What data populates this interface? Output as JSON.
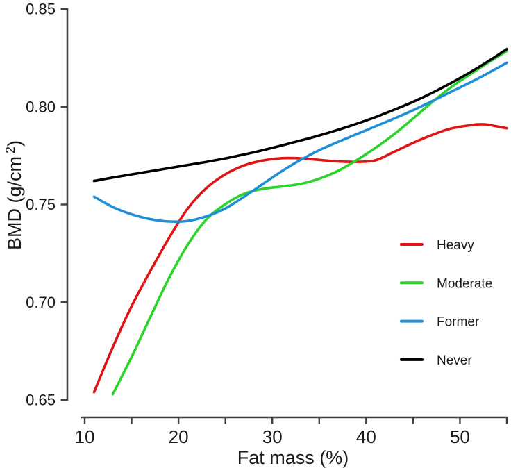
{
  "figure": {
    "background": "#ffffff",
    "axis_color": "#3f3f3f",
    "text_color": "#1a1a1a"
  },
  "chart_data": {
    "type": "line",
    "title": "",
    "xlabel": "Fat mass (%)",
    "ylabel_base": "BMD (g/cm",
    "ylabel_sup": "2",
    "ylabel_close": ")",
    "xlim": [
      10,
      55
    ],
    "ylim": [
      0.65,
      0.85
    ],
    "grid": false,
    "x_major_ticks": [
      10,
      20,
      30,
      40,
      50
    ],
    "x_major_tick_labels": [
      "10",
      "20",
      "30",
      "40",
      "50"
    ],
    "x_minor_ticks": [
      15,
      25,
      35,
      45,
      55
    ],
    "y_ticks": [
      0.85,
      0.8,
      0.75,
      0.7,
      0.65
    ],
    "y_tick_labels": [
      "0.85",
      "0.80",
      "0.75",
      "0.70",
      "0.65"
    ],
    "legend_position": "right-center",
    "legend_order": [
      "Heavy",
      "Moderate",
      "Former",
      "Never"
    ],
    "series": [
      {
        "name": "Heavy",
        "color": "#e01414",
        "points": [
          [
            11,
            0.654
          ],
          [
            13,
            0.677
          ],
          [
            15,
            0.698
          ],
          [
            17,
            0.716
          ],
          [
            19,
            0.733
          ],
          [
            21,
            0.748
          ],
          [
            23,
            0.7585
          ],
          [
            25,
            0.7655
          ],
          [
            27,
            0.77
          ],
          [
            29,
            0.7725
          ],
          [
            31,
            0.7737
          ],
          [
            33,
            0.7736
          ],
          [
            35,
            0.7728
          ],
          [
            37,
            0.772
          ],
          [
            39,
            0.7718
          ],
          [
            41,
            0.7726
          ],
          [
            43,
            0.777
          ],
          [
            45,
            0.7815
          ],
          [
            47,
            0.7855
          ],
          [
            49,
            0.7888
          ],
          [
            51,
            0.7905
          ],
          [
            52,
            0.791
          ],
          [
            53,
            0.7908
          ],
          [
            55,
            0.789
          ]
        ]
      },
      {
        "name": "Moderate",
        "color": "#2bd42b",
        "points": [
          [
            13,
            0.653
          ],
          [
            15,
            0.672
          ],
          [
            17,
            0.6925
          ],
          [
            19,
            0.7125
          ],
          [
            21,
            0.7295
          ],
          [
            23,
            0.7425
          ],
          [
            25,
            0.7502
          ],
          [
            27,
            0.7555
          ],
          [
            29,
            0.758
          ],
          [
            31,
            0.7592
          ],
          [
            33,
            0.7605
          ],
          [
            35,
            0.7632
          ],
          [
            37,
            0.7672
          ],
          [
            39,
            0.7727
          ],
          [
            41,
            0.779
          ],
          [
            43,
            0.786
          ],
          [
            45,
            0.794
          ],
          [
            47,
            0.8022
          ],
          [
            49,
            0.8098
          ],
          [
            51,
            0.8163
          ],
          [
            53,
            0.8225
          ],
          [
            55,
            0.8285
          ]
        ]
      },
      {
        "name": "Former",
        "color": "#1f8fd8",
        "points": [
          [
            11,
            0.754
          ],
          [
            13,
            0.7487
          ],
          [
            15,
            0.745
          ],
          [
            17,
            0.7425
          ],
          [
            19,
            0.7413
          ],
          [
            21,
            0.7416
          ],
          [
            23,
            0.744
          ],
          [
            25,
            0.748
          ],
          [
            27,
            0.754
          ],
          [
            29,
            0.7605
          ],
          [
            31,
            0.767
          ],
          [
            33,
            0.7728
          ],
          [
            35,
            0.7778
          ],
          [
            37,
            0.782
          ],
          [
            39,
            0.786
          ],
          [
            41,
            0.79
          ],
          [
            43,
            0.794
          ],
          [
            45,
            0.7982
          ],
          [
            47,
            0.8028
          ],
          [
            49,
            0.8075
          ],
          [
            51,
            0.8122
          ],
          [
            53,
            0.8172
          ],
          [
            55,
            0.8225
          ]
        ]
      },
      {
        "name": "Never",
        "color": "#000000",
        "points": [
          [
            11,
            0.762
          ],
          [
            13,
            0.7638
          ],
          [
            15,
            0.7654
          ],
          [
            17,
            0.767
          ],
          [
            19,
            0.7686
          ],
          [
            21,
            0.7702
          ],
          [
            23,
            0.7718
          ],
          [
            25,
            0.7736
          ],
          [
            27,
            0.7756
          ],
          [
            29,
            0.7778
          ],
          [
            31,
            0.7802
          ],
          [
            33,
            0.7827
          ],
          [
            35,
            0.7853
          ],
          [
            37,
            0.7882
          ],
          [
            39,
            0.7913
          ],
          [
            41,
            0.7947
          ],
          [
            43,
            0.7985
          ],
          [
            45,
            0.8025
          ],
          [
            47,
            0.807
          ],
          [
            49,
            0.812
          ],
          [
            51,
            0.8174
          ],
          [
            53,
            0.8232
          ],
          [
            55,
            0.8295
          ]
        ]
      }
    ]
  }
}
